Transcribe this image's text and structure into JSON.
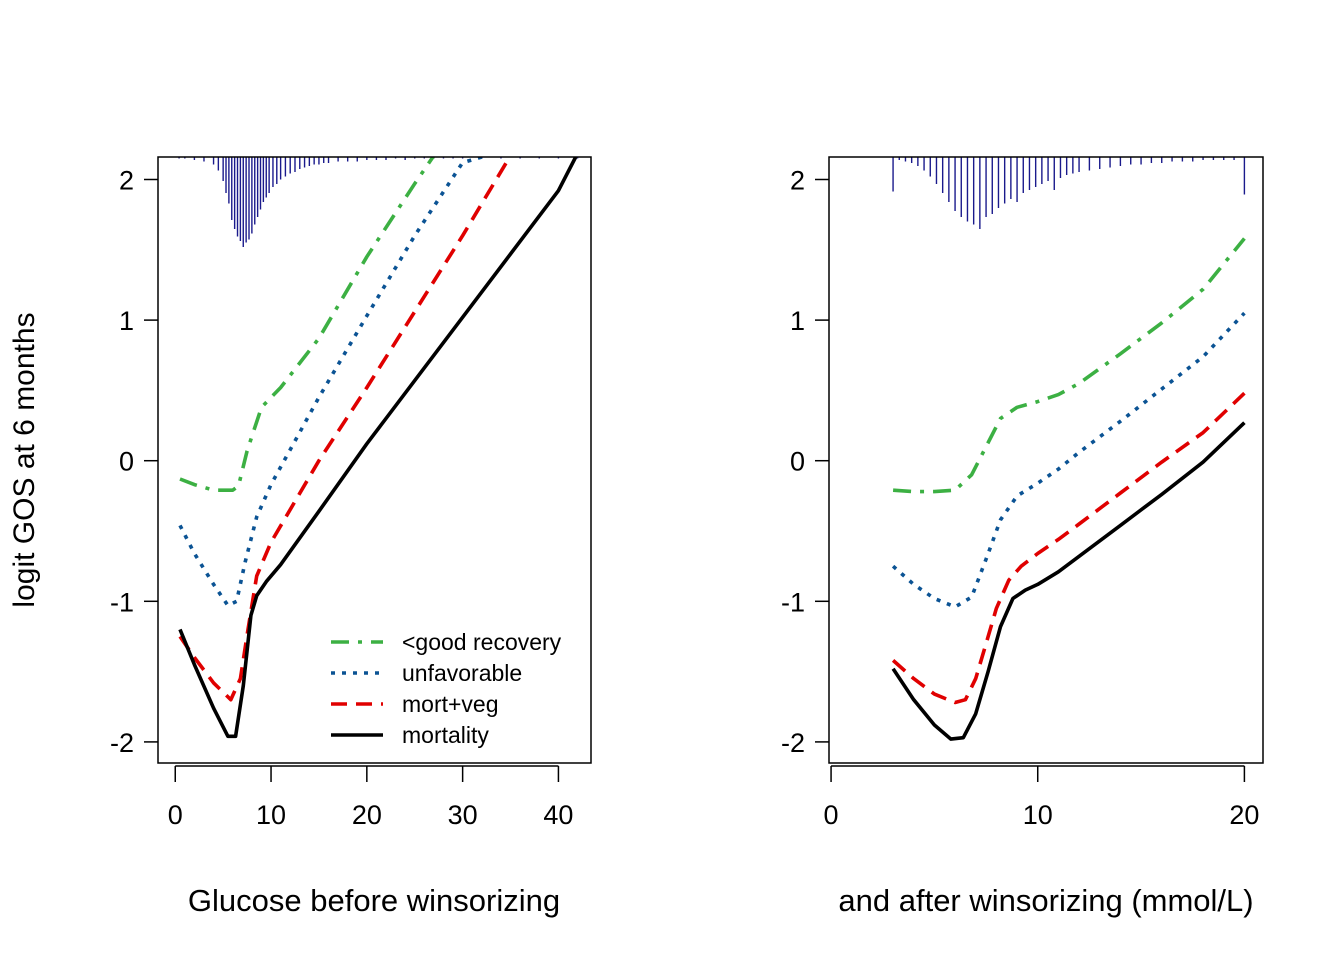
{
  "ylabel": "logit GOS at 6 months",
  "colors": {
    "good_recovery": "#3cb043",
    "unfavorable": "#0b5394",
    "mort_veg": "#e00000",
    "mortality": "#000000",
    "histogram": "#1a1a8c"
  },
  "chart_data": [
    {
      "type": "line",
      "xlabel": "Glucose before winsorizing",
      "ylabel": "logit GOS at 6 months",
      "xlim": [
        -1.8,
        43.4
      ],
      "ylim": [
        -2.15,
        2.16
      ],
      "xticks": [
        0,
        10,
        20,
        30,
        40
      ],
      "yticks": [
        -2,
        -1,
        0,
        1,
        2
      ],
      "legend": {
        "position": "bottom-right",
        "entries": [
          "<good recovery",
          "unfavorable",
          "mort+veg",
          "mortality"
        ]
      },
      "series": [
        {
          "name": "<good recovery",
          "dash": "dashdot",
          "x": [
            0.5,
            2,
            4,
            6,
            6.6,
            7.5,
            9,
            11,
            15,
            20,
            25,
            27
          ],
          "y": [
            -0.13,
            -0.17,
            -0.21,
            -0.21,
            -0.18,
            0.07,
            0.38,
            0.52,
            0.87,
            1.45,
            1.97,
            2.17
          ]
        },
        {
          "name": "unfavorable",
          "dash": "dotted",
          "x": [
            0.5,
            2,
            4,
            5.5,
            6.4,
            7.3,
            8.5,
            10,
            15,
            20,
            25,
            30,
            32.5
          ],
          "y": [
            -0.46,
            -0.66,
            -0.88,
            -1.03,
            -1.0,
            -0.72,
            -0.4,
            -0.17,
            0.45,
            1.03,
            1.6,
            2.12,
            2.17
          ]
        },
        {
          "name": "mort+veg",
          "dash": "dashed",
          "x": [
            0.5,
            2,
            4,
            5.8,
            6.8,
            7.6,
            8.5,
            10,
            15,
            20,
            25,
            30,
            35,
            40,
            42
          ],
          "y": [
            -1.25,
            -1.4,
            -1.58,
            -1.7,
            -1.55,
            -1.2,
            -0.82,
            -0.58,
            0.0,
            0.52,
            1.06,
            1.6,
            2.17,
            2.17,
            2.17
          ]
        },
        {
          "name": "mortality",
          "dash": "solid",
          "x": [
            0.5,
            2,
            4,
            5.5,
            6.3,
            7.1,
            7.9,
            8.5,
            9.5,
            11,
            15,
            20,
            25,
            30,
            35,
            40,
            41.8
          ],
          "y": [
            -1.2,
            -1.45,
            -1.76,
            -1.96,
            -1.96,
            -1.6,
            -1.1,
            -0.96,
            -0.86,
            -0.74,
            -0.36,
            0.12,
            0.57,
            1.02,
            1.47,
            1.92,
            2.16
          ]
        }
      ],
      "histogram": {
        "x": [
          0.4,
          1,
          2,
          3,
          4,
          4.5,
          5,
          5.3,
          5.6,
          5.9,
          6.2,
          6.5,
          6.8,
          7.1,
          7.4,
          7.7,
          8,
          8.3,
          8.6,
          8.9,
          9.2,
          9.5,
          9.8,
          10.2,
          10.6,
          11,
          11.5,
          12,
          12.5,
          13,
          13.5,
          14,
          14.5,
          15,
          15.5,
          16,
          17,
          18,
          19,
          20,
          21,
          22,
          23,
          24,
          25,
          26,
          27,
          28,
          29,
          30,
          32,
          34,
          36,
          38,
          40,
          42
        ],
        "h": [
          0.01,
          0.01,
          0.02,
          0.03,
          0.05,
          0.09,
          0.16,
          0.24,
          0.31,
          0.42,
          0.48,
          0.53,
          0.56,
          0.6,
          0.57,
          0.55,
          0.51,
          0.45,
          0.4,
          0.35,
          0.3,
          0.27,
          0.24,
          0.2,
          0.18,
          0.15,
          0.13,
          0.11,
          0.1,
          0.08,
          0.07,
          0.06,
          0.05,
          0.05,
          0.04,
          0.04,
          0.03,
          0.03,
          0.03,
          0.02,
          0.02,
          0.02,
          0.01,
          0.02,
          0.01,
          0.01,
          0.01,
          0.01,
          0.01,
          0.01,
          0.01,
          0.01,
          0.01,
          0.01,
          0.01,
          0.01
        ]
      }
    },
    {
      "type": "line",
      "xlabel": "and after winsorizing (mmol/L)",
      "ylabel": "logit GOS at 6 months",
      "xlim": [
        -0.1,
        20.9
      ],
      "ylim": [
        -2.15,
        2.16
      ],
      "xticks": [
        0,
        10,
        20
      ],
      "yticks": [
        -2,
        -1,
        0,
        1,
        2
      ],
      "series": [
        {
          "name": "<good recovery",
          "dash": "dashdot",
          "x": [
            3,
            4,
            5,
            6,
            6.8,
            7.5,
            8.2,
            9,
            10,
            11,
            12,
            14,
            16,
            18,
            20
          ],
          "y": [
            -0.21,
            -0.22,
            -0.22,
            -0.21,
            -0.1,
            0.1,
            0.3,
            0.38,
            0.42,
            0.47,
            0.55,
            0.76,
            0.98,
            1.22,
            1.58
          ]
        },
        {
          "name": "unfavorable",
          "dash": "dotted",
          "x": [
            3,
            4,
            5,
            6,
            6.8,
            7.5,
            8.2,
            9,
            10,
            11,
            12,
            14,
            16,
            18,
            20
          ],
          "y": [
            -0.75,
            -0.88,
            -0.98,
            -1.04,
            -0.97,
            -0.7,
            -0.42,
            -0.25,
            -0.16,
            -0.06,
            0.06,
            0.28,
            0.51,
            0.74,
            1.05
          ]
        },
        {
          "name": "mort+veg",
          "dash": "dashed",
          "x": [
            3,
            4,
            5,
            6,
            6.5,
            7,
            7.5,
            8,
            8.6,
            9.2,
            10,
            11,
            12,
            14,
            16,
            18,
            20
          ],
          "y": [
            -1.42,
            -1.55,
            -1.66,
            -1.72,
            -1.7,
            -1.55,
            -1.3,
            -1.05,
            -0.85,
            -0.75,
            -0.66,
            -0.56,
            -0.45,
            -0.23,
            -0.01,
            0.2,
            0.48
          ]
        },
        {
          "name": "mortality",
          "dash": "solid",
          "x": [
            3,
            4,
            5,
            5.8,
            6.4,
            7,
            7.6,
            8.2,
            8.8,
            9.4,
            10,
            11,
            12,
            14,
            16,
            18,
            20
          ],
          "y": [
            -1.48,
            -1.7,
            -1.88,
            -1.98,
            -1.97,
            -1.8,
            -1.5,
            -1.18,
            -0.98,
            -0.92,
            -0.88,
            -0.79,
            -0.68,
            -0.46,
            -0.24,
            -0.01,
            0.27
          ]
        }
      ],
      "histogram": {
        "x": [
          3,
          3.3,
          3.6,
          3.9,
          4.2,
          4.5,
          4.8,
          5.1,
          5.4,
          5.7,
          6,
          6.3,
          6.6,
          6.9,
          7.2,
          7.5,
          7.8,
          8.1,
          8.4,
          8.7,
          9,
          9.3,
          9.6,
          9.9,
          10.2,
          10.5,
          10.8,
          11.1,
          11.4,
          11.7,
          12,
          12.5,
          13,
          13.5,
          14,
          14.5,
          15,
          15.5,
          16,
          16.5,
          17,
          17.5,
          18,
          18.5,
          19,
          19.5,
          20
        ],
        "h": [
          0.23,
          0.02,
          0.03,
          0.04,
          0.06,
          0.09,
          0.13,
          0.18,
          0.24,
          0.3,
          0.36,
          0.4,
          0.43,
          0.45,
          0.48,
          0.4,
          0.38,
          0.34,
          0.31,
          0.28,
          0.3,
          0.24,
          0.22,
          0.2,
          0.18,
          0.16,
          0.22,
          0.14,
          0.12,
          0.11,
          0.1,
          0.09,
          0.08,
          0.07,
          0.06,
          0.05,
          0.05,
          0.04,
          0.04,
          0.03,
          0.03,
          0.03,
          0.02,
          0.02,
          0.02,
          0.02,
          0.25
        ]
      }
    }
  ]
}
